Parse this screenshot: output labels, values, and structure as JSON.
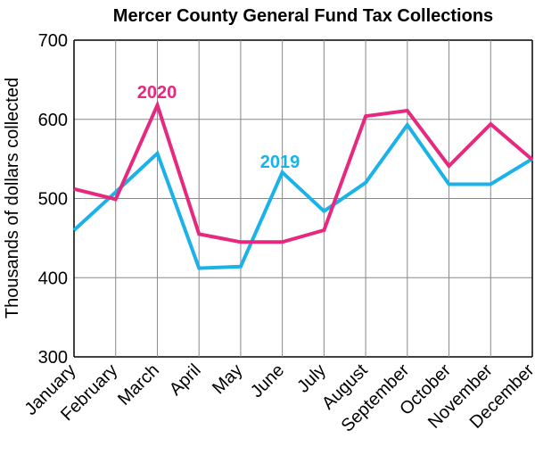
{
  "chart_data": {
    "type": "line",
    "title": "Mercer County General Fund Tax Collections",
    "xlabel": "",
    "ylabel": "Thousands of dollars collected",
    "ylim": [
      300,
      700
    ],
    "yticks": [
      "300",
      "400",
      "500",
      "600",
      "700"
    ],
    "categories": [
      "January",
      "February",
      "March",
      "April",
      "May",
      "June",
      "July",
      "August",
      "September",
      "October",
      "November",
      "December"
    ],
    "grid": true,
    "series": [
      {
        "name": "2019",
        "color": "#1ab2e8",
        "values": [
          460,
          508,
          557,
          412,
          414,
          533,
          484,
          520,
          593,
          518,
          518,
          550
        ]
      },
      {
        "name": "2020",
        "color": "#e6287f",
        "values": [
          512,
          499,
          618,
          455,
          445,
          445,
          460,
          604,
          611,
          541,
          594,
          549
        ]
      }
    ]
  }
}
